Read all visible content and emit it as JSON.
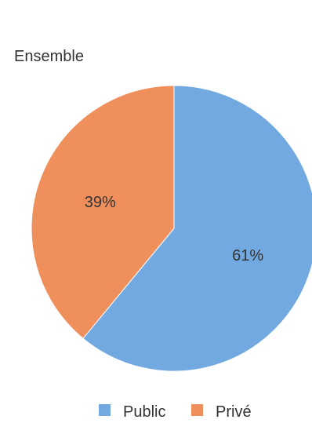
{
  "chart_data": {
    "type": "pie",
    "title": "Ensemble",
    "categories": [
      "Public",
      "Privé"
    ],
    "values": [
      61,
      39
    ],
    "labels": [
      "61%",
      "39%"
    ],
    "colors": [
      "#72A9E1",
      "#EF8F5C"
    ],
    "legend_position": "bottom"
  }
}
